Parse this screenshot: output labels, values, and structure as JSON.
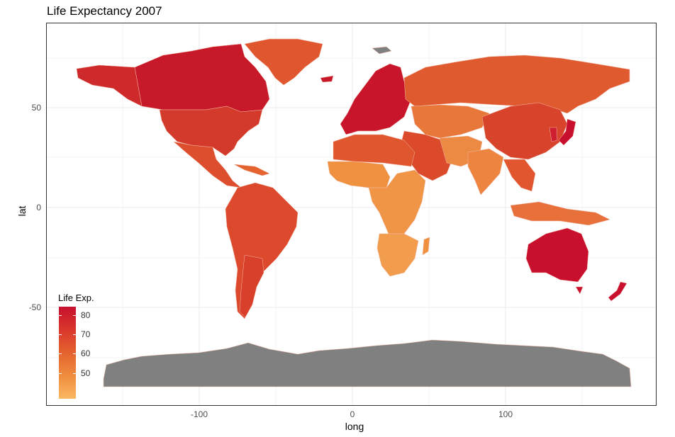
{
  "chart_data": {
    "type": "choropleth map",
    "title": "Life Expectancy 2007",
    "xlabel": "long",
    "ylabel": "lat",
    "x_ticks": [
      "-100",
      "0",
      "100"
    ],
    "y_ticks": [
      "50",
      "0",
      "-50"
    ],
    "xlim": [
      -189,
      192
    ],
    "ylim": [
      -95,
      94
    ],
    "grid": true,
    "legend": {
      "title": "Life Exp.",
      "placement": "bottom-left inside",
      "ticks": [
        "80",
        "70",
        "60",
        "50"
      ],
      "range": [
        43,
        83
      ],
      "color_low": "#fcb760",
      "color_high": "#c8102e",
      "na_color": "#808080"
    }
  }
}
